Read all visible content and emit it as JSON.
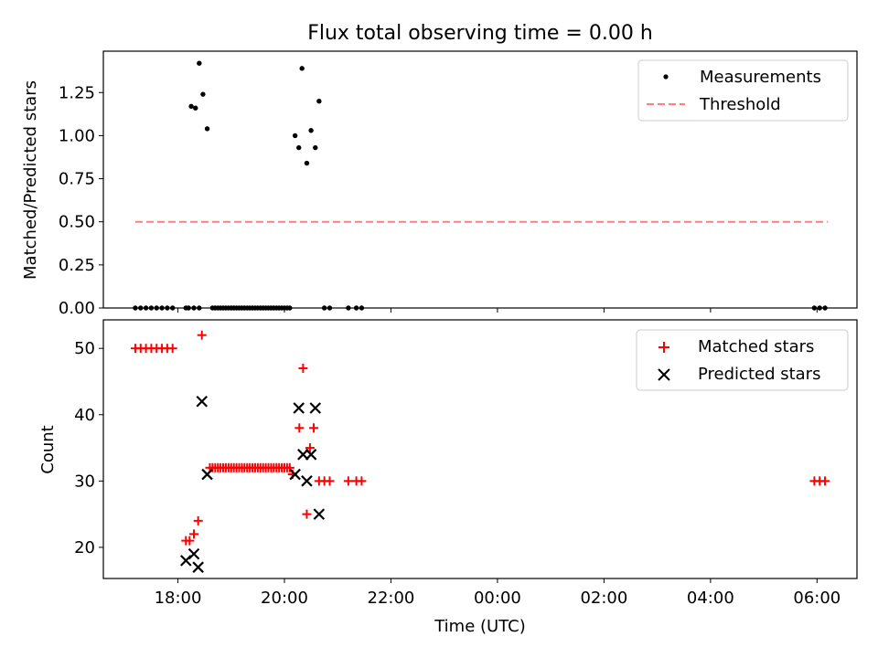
{
  "figure": {
    "title": "Flux total observing time = 0.00 h",
    "xlabel": "Time (UTC)",
    "xticks": [
      "18:00",
      "20:00",
      "22:00",
      "00:00",
      "02:00",
      "04:00",
      "06:00"
    ]
  },
  "chart_data": [
    {
      "type": "scatter",
      "ylabel": "Matched/Predicted stars",
      "x_unit": "hours since 18:00 UTC",
      "xlim": [
        -1.4,
        12.75
      ],
      "ylim": [
        0,
        1.49
      ],
      "yticks": [
        "0.00",
        "0.25",
        "0.50",
        "0.75",
        "1.00",
        "1.25"
      ],
      "legend": {
        "position": "top-right",
        "entries": [
          "Measurements",
          "Threshold"
        ]
      },
      "threshold": {
        "name": "Threshold",
        "value": 0.5,
        "x_range": [
          -0.8,
          12.2
        ],
        "color": "#ff7f7f"
      },
      "measurements": {
        "name": "Measurements",
        "color": "#000000",
        "points": [
          [
            -0.8,
            0
          ],
          [
            -0.7,
            0
          ],
          [
            -0.6,
            0
          ],
          [
            -0.5,
            0
          ],
          [
            -0.4,
            0
          ],
          [
            -0.3,
            0
          ],
          [
            -0.2,
            0
          ],
          [
            -0.1,
            0
          ],
          [
            0.15,
            0
          ],
          [
            0.2,
            0
          ],
          [
            0.3,
            0
          ],
          [
            0.4,
            0
          ],
          [
            0.65,
            0
          ],
          [
            0.7,
            0
          ],
          [
            0.75,
            0
          ],
          [
            0.8,
            0
          ],
          [
            0.85,
            0
          ],
          [
            0.9,
            0
          ],
          [
            0.95,
            0
          ],
          [
            1.0,
            0
          ],
          [
            1.05,
            0
          ],
          [
            1.1,
            0
          ],
          [
            1.15,
            0
          ],
          [
            1.2,
            0
          ],
          [
            1.25,
            0
          ],
          [
            1.3,
            0
          ],
          [
            1.35,
            0
          ],
          [
            1.4,
            0
          ],
          [
            1.45,
            0
          ],
          [
            1.5,
            0
          ],
          [
            1.55,
            0
          ],
          [
            1.6,
            0
          ],
          [
            1.65,
            0
          ],
          [
            1.7,
            0
          ],
          [
            1.75,
            0
          ],
          [
            1.8,
            0
          ],
          [
            1.85,
            0
          ],
          [
            1.9,
            0
          ],
          [
            1.95,
            0
          ],
          [
            2.0,
            0
          ],
          [
            2.05,
            0
          ],
          [
            2.1,
            0
          ],
          [
            2.75,
            0
          ],
          [
            2.85,
            0
          ],
          [
            3.2,
            0
          ],
          [
            3.35,
            0
          ],
          [
            3.45,
            0
          ],
          [
            11.95,
            0
          ],
          [
            12.05,
            0
          ],
          [
            12.15,
            0
          ],
          [
            0.25,
            1.17
          ],
          [
            0.33,
            1.16
          ],
          [
            0.4,
            1.42
          ],
          [
            0.47,
            1.24
          ],
          [
            0.55,
            1.04
          ],
          [
            2.2,
            1.0
          ],
          [
            2.27,
            0.93
          ],
          [
            2.33,
            1.39
          ],
          [
            2.42,
            0.84
          ],
          [
            2.5,
            1.03
          ],
          [
            2.58,
            0.93
          ],
          [
            2.65,
            1.2
          ]
        ]
      }
    },
    {
      "type": "scatter",
      "ylabel": "Count",
      "x_unit": "hours since 18:00 UTC",
      "xlim": [
        -1.4,
        12.75
      ],
      "ylim": [
        15.3,
        54.3
      ],
      "yticks": [
        "20",
        "30",
        "40",
        "50"
      ],
      "legend": {
        "position": "top-right",
        "entries": [
          "Matched stars",
          "Predicted stars"
        ]
      },
      "series": [
        {
          "name": "Matched stars",
          "marker": "plus",
          "color": "#ff0000",
          "points": [
            [
              -0.8,
              50
            ],
            [
              -0.7,
              50
            ],
            [
              -0.6,
              50
            ],
            [
              -0.5,
              50
            ],
            [
              -0.4,
              50
            ],
            [
              -0.3,
              50
            ],
            [
              -0.2,
              50
            ],
            [
              -0.1,
              50
            ],
            [
              0.15,
              21
            ],
            [
              0.22,
              21
            ],
            [
              0.3,
              22
            ],
            [
              0.38,
              24
            ],
            [
              0.45,
              52
            ],
            [
              0.6,
              32
            ],
            [
              0.65,
              32
            ],
            [
              0.7,
              32
            ],
            [
              0.75,
              32
            ],
            [
              0.8,
              32
            ],
            [
              0.85,
              32
            ],
            [
              0.9,
              32
            ],
            [
              0.95,
              32
            ],
            [
              1.0,
              32
            ],
            [
              1.05,
              32
            ],
            [
              1.1,
              32
            ],
            [
              1.15,
              32
            ],
            [
              1.2,
              32
            ],
            [
              1.25,
              32
            ],
            [
              1.3,
              32
            ],
            [
              1.35,
              32
            ],
            [
              1.4,
              32
            ],
            [
              1.45,
              32
            ],
            [
              1.5,
              32
            ],
            [
              1.55,
              32
            ],
            [
              1.6,
              32
            ],
            [
              1.65,
              32
            ],
            [
              1.7,
              32
            ],
            [
              1.75,
              32
            ],
            [
              1.8,
              32
            ],
            [
              1.85,
              32
            ],
            [
              1.9,
              32
            ],
            [
              1.95,
              32
            ],
            [
              2.0,
              32
            ],
            [
              2.05,
              32
            ],
            [
              2.1,
              32
            ],
            [
              2.15,
              31
            ],
            [
              2.28,
              38
            ],
            [
              2.35,
              47
            ],
            [
              2.42,
              25
            ],
            [
              2.48,
              35
            ],
            [
              2.55,
              38
            ],
            [
              2.65,
              30
            ],
            [
              2.75,
              30
            ],
            [
              2.85,
              30
            ],
            [
              3.2,
              30
            ],
            [
              3.35,
              30
            ],
            [
              3.45,
              30
            ],
            [
              11.95,
              30
            ],
            [
              12.05,
              30
            ],
            [
              12.15,
              30
            ]
          ]
        },
        {
          "name": "Predicted stars",
          "marker": "x",
          "color": "#000000",
          "points": [
            [
              0.15,
              18
            ],
            [
              0.3,
              19
            ],
            [
              0.38,
              17
            ],
            [
              0.45,
              42
            ],
            [
              0.55,
              31
            ],
            [
              2.2,
              31
            ],
            [
              2.27,
              41
            ],
            [
              2.35,
              34
            ],
            [
              2.42,
              30
            ],
            [
              2.5,
              34
            ],
            [
              2.58,
              41
            ],
            [
              2.65,
              25
            ]
          ]
        }
      ]
    }
  ]
}
